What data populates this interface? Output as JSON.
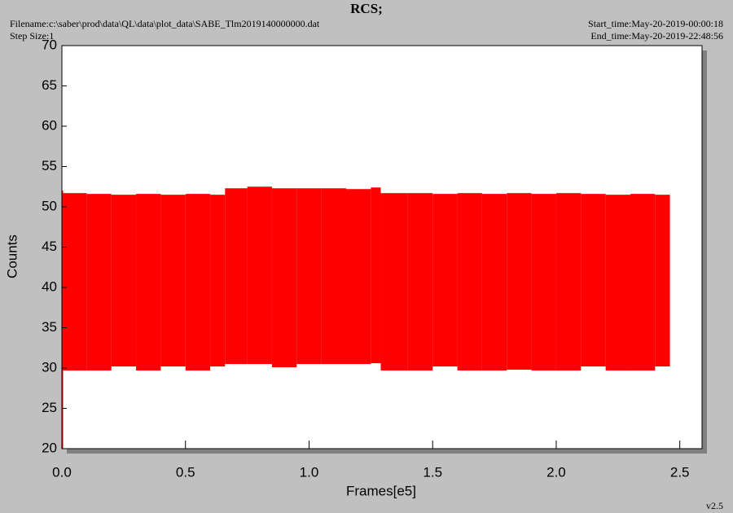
{
  "header": {
    "filename": "Filename:c:\\saber\\prod\\data\\QL\\data\\plot_data\\SABE_Tlm2019140000000.dat",
    "step_size": "Step Size:1",
    "start_time": "Start_time:May-20-2019-00:00:18",
    "end_time": "End_time:May-20-2019-22:48:56"
  },
  "footer": {
    "version": "v2.5"
  },
  "chart_data": {
    "type": "range",
    "title": "RCS;",
    "xlabel": "Frames[e5]",
    "ylabel": "Counts",
    "color": "#ff0000",
    "bins": [
      0,
      0.005,
      0.1,
      0.2,
      0.3,
      0.4,
      0.5,
      0.6,
      0.66,
      0.75,
      0.85,
      0.95,
      1.05,
      1.15,
      1.25,
      1.29,
      1.4,
      1.5,
      1.6,
      1.7,
      1.8,
      1.9,
      2.0,
      2.1,
      2.2,
      2.3,
      2.4,
      2.46
    ],
    "low": [
      20,
      29.7,
      29.7,
      30.2,
      29.7,
      30.2,
      29.7,
      30.2,
      30.5,
      30.5,
      30.1,
      30.5,
      30.5,
      30.5,
      30.6,
      29.7,
      29.7,
      30.2,
      29.7,
      29.7,
      29.8,
      29.7,
      29.7,
      30.2,
      29.7,
      29.7,
      30.2
    ],
    "high": [
      52,
      51.7,
      51.6,
      51.5,
      51.6,
      51.5,
      51.6,
      51.5,
      52.3,
      52.5,
      52.3,
      52.3,
      52.3,
      52.2,
      52.4,
      51.7,
      51.7,
      51.6,
      51.7,
      51.6,
      51.7,
      51.6,
      51.7,
      51.6,
      51.5,
      51.6,
      51.5
    ],
    "xlim": [
      0,
      2.59
    ],
    "ylim": [
      20,
      70
    ],
    "xticks": [
      {
        "value": 0,
        "label": "0.0"
      },
      0.5,
      {
        "value": 1,
        "label": "1.0"
      },
      1.5,
      {
        "value": 2,
        "label": "2.0"
      },
      2.5
    ],
    "yticks": [
      20,
      25,
      30,
      35,
      40,
      45,
      50,
      55,
      60,
      65,
      70
    ]
  }
}
